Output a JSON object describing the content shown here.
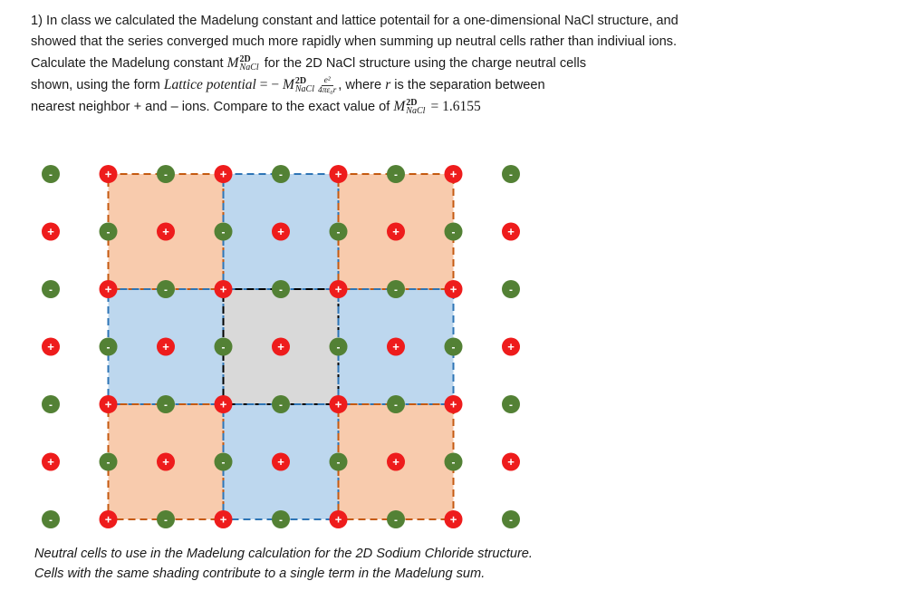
{
  "problem": {
    "p1": "1) In class we calculated the Madelung constant and lattice potentail for a one-dimensional NaCl structure, and showed that the series converged much more rapidly when summing up neutral cells rather than indiviual ions.",
    "p2_a": "Calculate the Madelung constant ",
    "p2_b": " for the 2D NaCl structure using the charge neutral cells",
    "p3_a": "shown, using the form ",
    "p3_b": ", where ",
    "p3_c": " is the separation between",
    "p4_a": "nearest neighbor + and – ions. Compare to the exact value of ",
    "exact_value": "= 1.6155",
    "symbol_M": "M",
    "symbol_sup": "2D",
    "symbol_sub": "NaCl",
    "lattice_potential": "Lattice potential",
    "equals_minus": "= −",
    "frac_num": "e²",
    "frac_den": "4πε₀r",
    "r_symbol": "r"
  },
  "caption": {
    "line1": "Neutral cells to use in the Madelung calculation for the 2D Sodium Chloride structure.",
    "line2": "Cells with the same shading contribute to a single term in the Madelung sum."
  },
  "lattice": {
    "rows": 7,
    "cols": 9,
    "plus_label": "+",
    "minus_label": "-",
    "colors": {
      "plus": "#ee1c1c",
      "minus": "#538135",
      "orange_fill": "#f8cbad",
      "blue_fill": "#bdd7ee",
      "grey_fill": "#d9d9d9",
      "orange_border": "#c55a11",
      "blue_border": "#2e75b6",
      "black_border": "#000000"
    }
  }
}
